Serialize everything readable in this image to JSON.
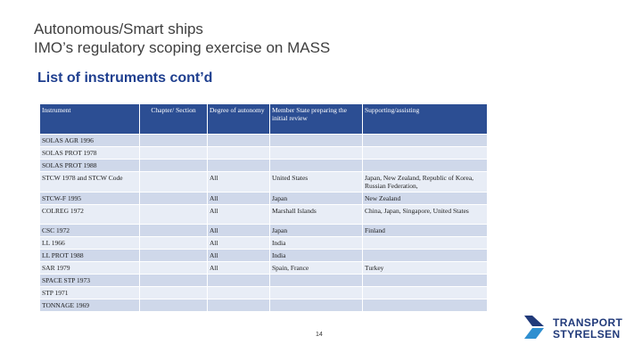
{
  "header": {
    "title_line1": "Autonomous/Smart ships",
    "title_line2": "IMO’s regulatory scoping exercise on MASS",
    "subtitle": "List of instruments cont’d"
  },
  "table": {
    "columns": [
      "Instrument",
      "Chapter/ Section",
      "Degree of autonomy",
      "Member State preparing the initial review",
      "Supporting/assisting"
    ],
    "rows": [
      {
        "instrument": "SOLAS AGR 1996",
        "chapter": "",
        "degree": "",
        "member_state": "",
        "supporting": ""
      },
      {
        "instrument": "SOLAS PROT 1978",
        "chapter": "",
        "degree": "",
        "member_state": "",
        "supporting": ""
      },
      {
        "instrument": "SOLAS PROT 1988",
        "chapter": "",
        "degree": "",
        "member_state": "",
        "supporting": ""
      },
      {
        "instrument": "STCW 1978 and STCW Code",
        "chapter": "",
        "degree": "All",
        "member_state": "United States",
        "supporting": "Japan, New Zealand, Republic of Korea, Russian Federation,"
      },
      {
        "instrument": "STCW-F 1995",
        "chapter": "",
        "degree": "All",
        "member_state": "Japan",
        "supporting": "New Zealand"
      },
      {
        "instrument": "COLREG 1972",
        "chapter": "",
        "degree": "All",
        "member_state": "Marshall Islands",
        "supporting": "China, Japan, Singapore, United States"
      },
      {
        "instrument": "CSC 1972",
        "chapter": "",
        "degree": "All",
        "member_state": "Japan",
        "supporting": "Finland"
      },
      {
        "instrument": "LL 1966",
        "chapter": "",
        "degree": "All",
        "member_state": "India",
        "supporting": ""
      },
      {
        "instrument": "LL PROT 1988",
        "chapter": "",
        "degree": "All",
        "member_state": "India",
        "supporting": ""
      },
      {
        "instrument": "SAR 1979",
        "chapter": "",
        "degree": "All",
        "member_state": "Spain, France",
        "supporting": "Turkey"
      },
      {
        "instrument": "SPACE STP 1973",
        "chapter": "",
        "degree": "",
        "member_state": "",
        "supporting": ""
      },
      {
        "instrument": "STP 1971",
        "chapter": "",
        "degree": "",
        "member_state": "",
        "supporting": ""
      },
      {
        "instrument": "TONNAGE 1969",
        "chapter": "",
        "degree": "",
        "member_state": "",
        "supporting": ""
      }
    ]
  },
  "footer": {
    "page_number": "14",
    "logo_line1": "TRANSPORT",
    "logo_line2": "STYRELSEN"
  },
  "colors": {
    "header_fill": "#2c4e93",
    "row_dark": "#cfd8ea",
    "row_light": "#e8edf6",
    "subtitle": "#1f3f8f",
    "brand_blue": "#213a7a"
  }
}
